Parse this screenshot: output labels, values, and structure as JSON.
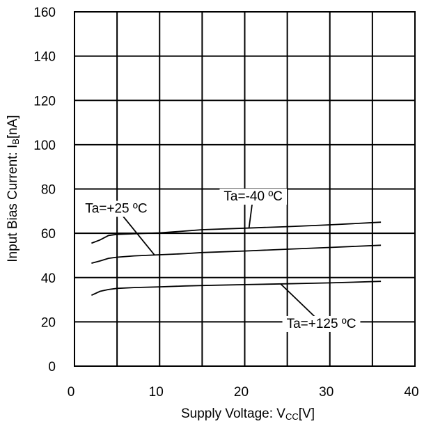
{
  "chart_data": {
    "type": "line",
    "title": "",
    "xlabel": {
      "main": "Supply Voltage: V",
      "sub": "CC",
      "unit": "[V]"
    },
    "ylabel": {
      "main": "Input Bias Current: I",
      "sub": "B",
      "unit": "[nA]"
    },
    "xlim": [
      0,
      40
    ],
    "ylim": [
      0,
      160
    ],
    "xticks": [
      0,
      10,
      20,
      30,
      40
    ],
    "yticks": [
      0,
      20,
      40,
      60,
      80,
      100,
      120,
      140,
      160
    ],
    "grid": true,
    "legend": "none",
    "series": [
      {
        "name": "Ta=-40 ºC",
        "x": [
          2,
          3,
          4,
          5,
          7,
          10,
          13,
          15,
          20,
          25,
          30,
          36
        ],
        "y": [
          55.5,
          57,
          59,
          59.5,
          59.8,
          60.2,
          61,
          61.6,
          62.3,
          63,
          63.8,
          65
        ]
      },
      {
        "name": "Ta=+25 ºC",
        "x": [
          2,
          3,
          4,
          5,
          7,
          10,
          13,
          15,
          20,
          25,
          30,
          36
        ],
        "y": [
          46.5,
          47.5,
          48.7,
          49.2,
          49.8,
          50.3,
          50.8,
          51.3,
          52,
          52.8,
          53.6,
          54.6
        ]
      },
      {
        "name": "Ta=+125 ºC",
        "x": [
          2,
          3,
          4,
          5,
          7,
          10,
          13,
          15,
          20,
          25,
          30,
          36
        ],
        "y": [
          32,
          33.8,
          34.6,
          35.1,
          35.5,
          35.8,
          36.2,
          36.4,
          36.8,
          37.2,
          37.6,
          38.3
        ]
      }
    ],
    "annotations": [
      {
        "text": "Ta=+25 ºC",
        "x": 4.9,
        "y": 71.5,
        "point_x": 9.4,
        "point_y": 50.2
      },
      {
        "text": "Ta=-40 ºC",
        "x": 21,
        "y": 77,
        "point_x": 20.5,
        "point_y": 62.3
      },
      {
        "text": "Ta=+125 ºC",
        "x": 29,
        "y": 19.5,
        "point_x": 24.2,
        "point_y": 37.2
      }
    ]
  }
}
